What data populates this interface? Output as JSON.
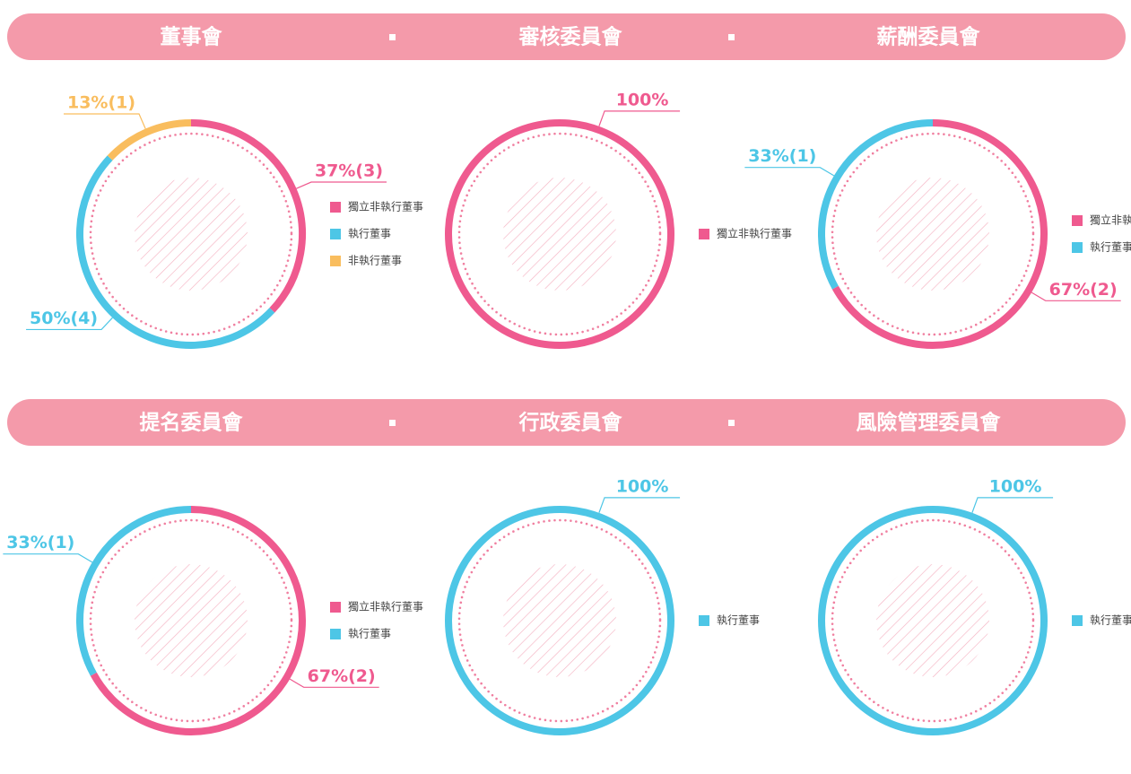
{
  "chart_data": [
    {
      "type": "donut",
      "title": "董事會",
      "categories": [
        "獨立非執行董事",
        "執行董事",
        "非執行董事"
      ],
      "values": [
        37,
        50,
        13
      ],
      "value_labels": [
        "37%(3)",
        "50%(4)",
        "13%(1)"
      ],
      "colors": [
        "#ef5a8f",
        "#4dc6e6",
        "#f9bd5e"
      ]
    },
    {
      "type": "donut",
      "title": "審核委員會",
      "categories": [
        "獨立非執行董事"
      ],
      "values": [
        100
      ],
      "value_labels": [
        "100%"
      ],
      "colors": [
        "#ef5a8f"
      ]
    },
    {
      "type": "donut",
      "title": "薪酬委員會",
      "categories": [
        "獨立非執行董事",
        "執行董事"
      ],
      "values": [
        67,
        33
      ],
      "value_labels": [
        "67%(2)",
        "33%(1)"
      ],
      "colors": [
        "#ef5a8f",
        "#4dc6e6"
      ]
    },
    {
      "type": "donut",
      "title": "提名委員會",
      "categories": [
        "獨立非執行董事",
        "執行董事"
      ],
      "values": [
        67,
        33
      ],
      "value_labels": [
        "67%(2)",
        "33%(1)"
      ],
      "colors": [
        "#ef5a8f",
        "#4dc6e6"
      ]
    },
    {
      "type": "donut",
      "title": "行政委員會",
      "categories": [
        "執行董事"
      ],
      "values": [
        100
      ],
      "value_labels": [
        "100%"
      ],
      "colors": [
        "#4dc6e6"
      ]
    },
    {
      "type": "donut",
      "title": "風險管理委員會",
      "categories": [
        "執行董事"
      ],
      "values": [
        100
      ],
      "value_labels": [
        "100%"
      ],
      "colors": [
        "#4dc6e6"
      ]
    }
  ]
}
